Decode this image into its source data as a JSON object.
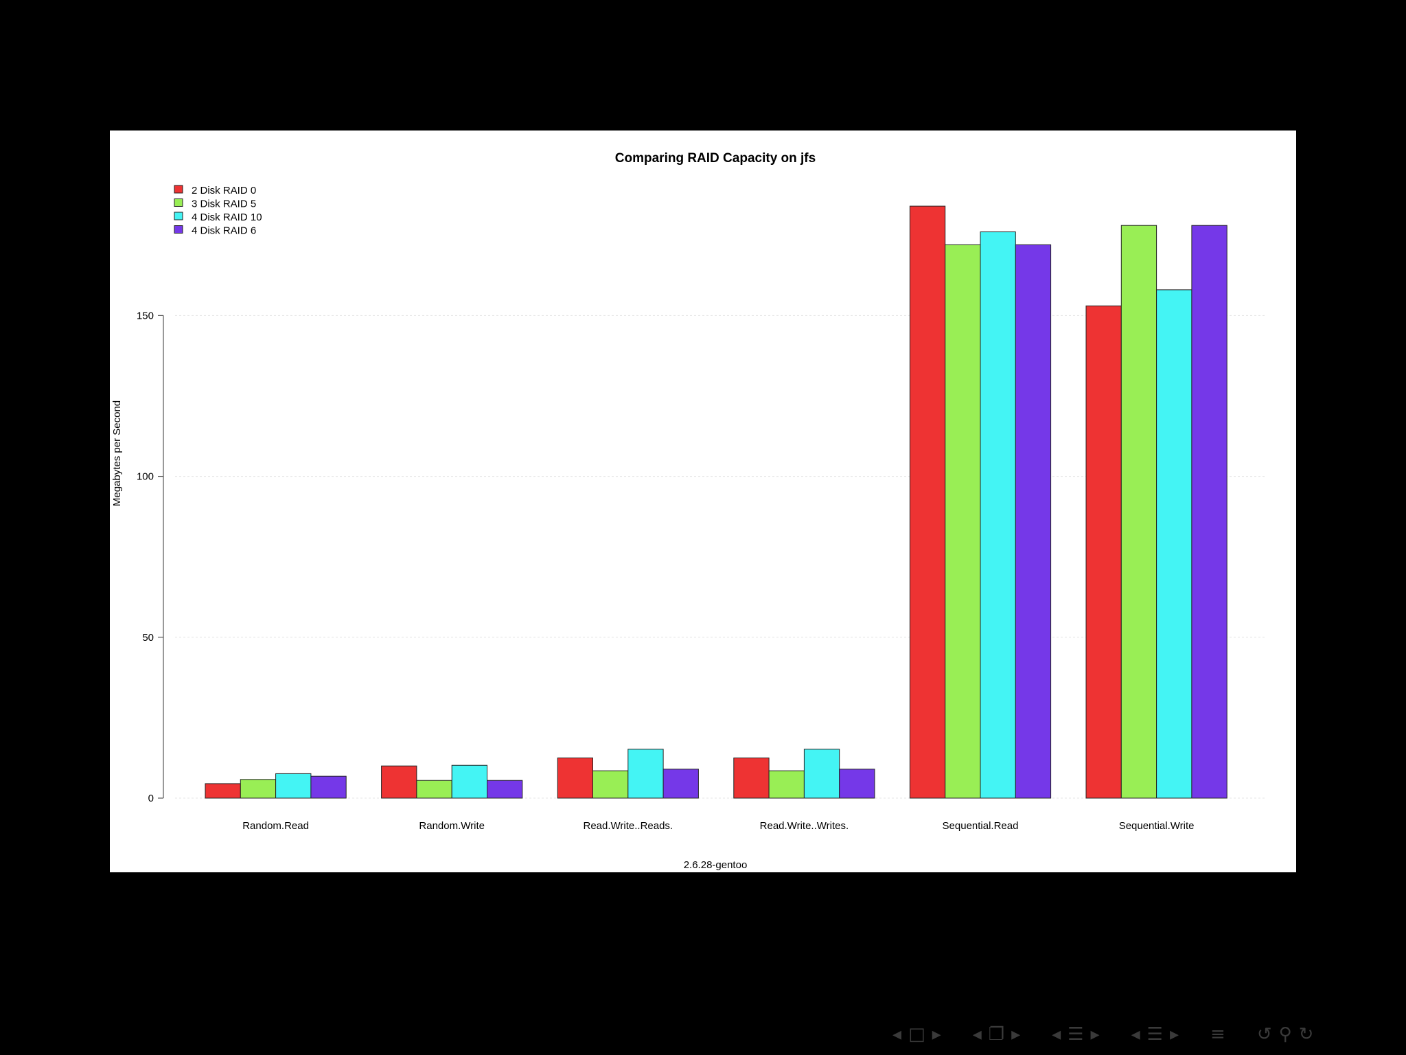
{
  "chart_data": {
    "type": "bar",
    "title": "Comparing RAID Capacity on jfs",
    "xlabel": "2.6.28-gentoo",
    "ylabel": "Megabytes per Second",
    "categories": [
      "Random.Read",
      "Random.Write",
      "Read.Write..Reads.",
      "Read.Write..Writes.",
      "Sequential.Read",
      "Sequential.Write"
    ],
    "series": [
      {
        "name": "2 Disk RAID 0",
        "color": "#ee3333",
        "values": [
          4.5,
          10,
          12.5,
          12.5,
          184,
          153
        ]
      },
      {
        "name": "3 Disk RAID 5",
        "color": "#99ee55",
        "values": [
          5.8,
          5.5,
          8.5,
          8.5,
          172,
          178
        ]
      },
      {
        "name": "4 Disk RAID 10",
        "color": "#44f4f4",
        "values": [
          7.6,
          10.2,
          15.2,
          15.2,
          176,
          158
        ]
      },
      {
        "name": "4 Disk RAID 6",
        "color": "#7538e8",
        "values": [
          6.8,
          5.5,
          9,
          9,
          172,
          178
        ]
      }
    ],
    "yticks": [
      0,
      50,
      100,
      150
    ],
    "ylim": [
      0,
      190
    ],
    "grid": true,
    "legend": "top-left"
  },
  "nav": {
    "icons": [
      "prev-arrow-icon",
      "frame-icon",
      "next-arrow-icon",
      "prev-arrow-icon",
      "subsection-icon",
      "next-arrow-icon",
      "prev-arrow-icon",
      "section-icon",
      "next-arrow-icon",
      "prev-arrow-icon",
      "document-icon",
      "next-arrow-icon",
      "align-icon",
      "back-icon",
      "search-icon",
      "forward-icon"
    ]
  }
}
